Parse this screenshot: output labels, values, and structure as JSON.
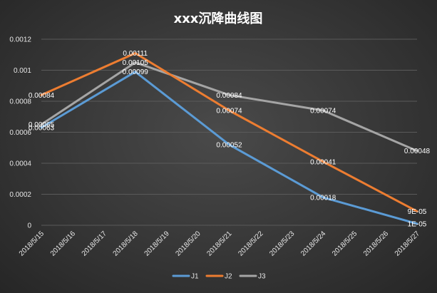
{
  "chart_data": {
    "type": "line",
    "title": "xxx沉降曲线图",
    "xlabel": "",
    "ylabel": "",
    "categories": [
      "2018/5/15",
      "2018/5/16",
      "2018/5/17",
      "2018/5/18",
      "2018/5/19",
      "2018/5/20",
      "2018/5/21",
      "2018/5/22",
      "2018/5/23",
      "2018/5/24",
      "2018/5/25",
      "2018/5/26",
      "2018/5/27"
    ],
    "ylim": [
      0,
      0.0012
    ],
    "yticks": [
      "0",
      "0.0002",
      "0.0004",
      "0.0006",
      "0.0008",
      "0.001",
      "0.0012"
    ],
    "grid": true,
    "legend_position": "bottom",
    "series": [
      {
        "name": "J1",
        "color": "#5b9bd5",
        "points": [
          {
            "x": "2018/5/15",
            "y": 0.00063,
            "label": "0.00063"
          },
          {
            "x": "2018/5/18",
            "y": 0.00099,
            "label": "0.00099"
          },
          {
            "x": "2018/5/21",
            "y": 0.00052,
            "label": "0.00052"
          },
          {
            "x": "2018/5/24",
            "y": 0.00018,
            "label": "0.00018"
          },
          {
            "x": "2018/5/27",
            "y": 1e-05,
            "label": "1E-05"
          }
        ]
      },
      {
        "name": "J2",
        "color": "#ed7d31",
        "points": [
          {
            "x": "2018/5/15",
            "y": 0.00084,
            "label": "0.00084"
          },
          {
            "x": "2018/5/18",
            "y": 0.00111,
            "label": "0.00111"
          },
          {
            "x": "2018/5/21",
            "y": 0.00074,
            "label": "0.00074"
          },
          {
            "x": "2018/5/24",
            "y": 0.00041,
            "label": "0.00041"
          },
          {
            "x": "2018/5/27",
            "y": 9e-05,
            "label": "9E-05"
          }
        ]
      },
      {
        "name": "J3",
        "color": "#a5a5a5",
        "points": [
          {
            "x": "2018/5/15",
            "y": 0.00065,
            "label": "0.00065"
          },
          {
            "x": "2018/5/18",
            "y": 0.00105,
            "label": "0.00105"
          },
          {
            "x": "2018/5/21",
            "y": 0.00084,
            "label": "0.00084"
          },
          {
            "x": "2018/5/24",
            "y": 0.00074,
            "label": "0.00074"
          },
          {
            "x": "2018/5/27",
            "y": 0.00048,
            "label": "0.00048"
          }
        ]
      }
    ]
  }
}
